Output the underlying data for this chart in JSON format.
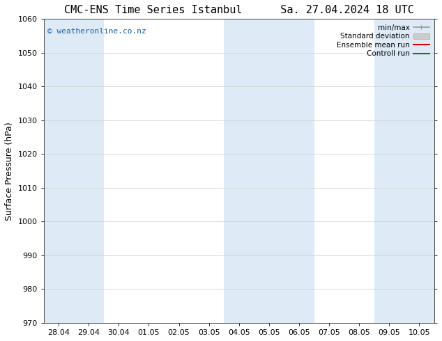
{
  "title_left": "CMC-ENS Time Series Istanbul",
  "title_right": "Sa. 27.04.2024 18 UTC",
  "ylabel": "Surface Pressure (hPa)",
  "ylim": [
    970,
    1060
  ],
  "yticks": [
    970,
    980,
    990,
    1000,
    1010,
    1020,
    1030,
    1040,
    1050,
    1060
  ],
  "x_labels": [
    "28.04",
    "29.04",
    "30.04",
    "01.05",
    "02.05",
    "03.05",
    "04.05",
    "05.05",
    "06.05",
    "07.05",
    "08.05",
    "09.05",
    "10.05"
  ],
  "x_values": [
    0,
    1,
    2,
    3,
    4,
    5,
    6,
    7,
    8,
    9,
    10,
    11,
    12
  ],
  "shaded_columns": [
    0,
    1,
    6,
    7,
    8,
    11,
    12
  ],
  "shaded_color": "#deeaf5",
  "watermark_text": "© weatheronline.co.nz",
  "watermark_color": "#1a5fa8",
  "legend_items": [
    {
      "label": "min/max",
      "color": "#999999",
      "lw": 1.2
    },
    {
      "label": "Standard deviation",
      "color": "#bbbbbb",
      "lw": 5
    },
    {
      "label": "Ensemble mean run",
      "color": "#dd0000",
      "lw": 1.5
    },
    {
      "label": "Controll run",
      "color": "#008800",
      "lw": 1.5
    }
  ],
  "background_color": "#ffffff",
  "title_fontsize": 11,
  "ylabel_fontsize": 9,
  "tick_fontsize": 8,
  "watermark_fontsize": 8,
  "legend_fontsize": 7.5
}
